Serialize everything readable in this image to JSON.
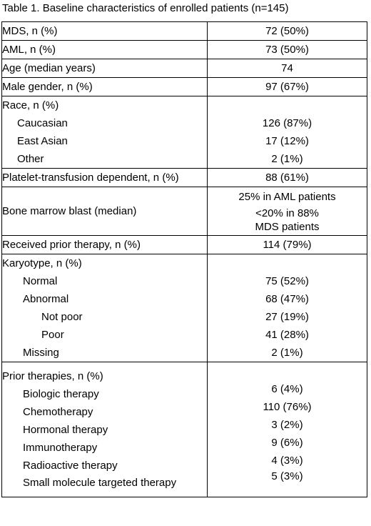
{
  "caption": "Table 1. Baseline characteristics of enrolled patients (n=145)",
  "rows": {
    "mds": {
      "label": "MDS, n (%)",
      "value": "72 (50%)"
    },
    "aml": {
      "label": "AML, n (%)",
      "value": "73 (50%)"
    },
    "age": {
      "label": "Age (median years)",
      "value": "74"
    },
    "male": {
      "label": "Male gender, n (%)",
      "value": "97 (67%)"
    },
    "race": {
      "label": "Race, n (%)",
      "items": [
        {
          "label": "Caucasian",
          "value": "126 (87%)"
        },
        {
          "label": "East Asian",
          "value": "17 (12%)"
        },
        {
          "label": "Other",
          "value": "2 (1%)"
        }
      ]
    },
    "platelet": {
      "label": "Platelet-transfusion dependent, n (%)",
      "value": "88 (61%)"
    },
    "blast": {
      "label": "Bone marrow blast (median)",
      "values": [
        "25% in AML patients",
        "<20% in 88% MDS patients"
      ]
    },
    "prior": {
      "label": "Received prior therapy, n (%)",
      "value": "114 (79%)"
    },
    "karyotype": {
      "label": "Karyotype, n (%)",
      "items": [
        {
          "label": "Normal",
          "value": "75 (52%)"
        },
        {
          "label": "Abnormal",
          "value": "68 (47%)"
        },
        {
          "label": "Not poor",
          "value": "27 (19%)"
        },
        {
          "label": "Poor",
          "value": "41 (28%)"
        },
        {
          "label": "Missing",
          "value": "2 (1%)"
        }
      ]
    },
    "therapies": {
      "label": "Prior therapies, n (%)",
      "items": [
        {
          "label": "Biologic therapy",
          "value": "6 (4%)"
        },
        {
          "label": "Chemotherapy",
          "value": "110 (76%)"
        },
        {
          "label": "Hormonal therapy",
          "value": "3 (2%)"
        },
        {
          "label": "Immunotherapy",
          "value": "9 (6%)"
        },
        {
          "label": "Radioactive therapy",
          "value": "4 (3%)"
        },
        {
          "label": "Small molecule targeted therapy",
          "value": "5 (3%)"
        }
      ]
    }
  }
}
